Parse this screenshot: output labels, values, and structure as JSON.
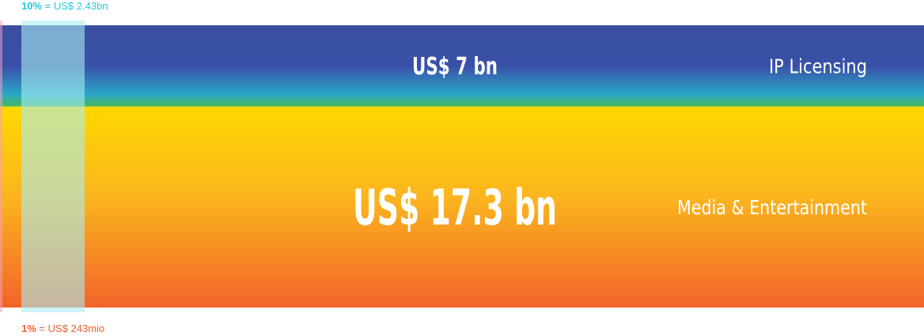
{
  "chart_data": {
    "type": "bar",
    "orientation": "stacked-horizontal-band",
    "total_bn": 24.3,
    "categories": [
      "IP Licensing",
      "Media & Entertainment"
    ],
    "series": [
      {
        "values": [
          7,
          17.3
        ]
      }
    ],
    "value_labels": [
      "US$ 7 bn",
      "US$ 17.3 bn"
    ],
    "legend": [
      {
        "percent": "10%",
        "text": "= US$ 2.43bn",
        "fraction": 0.1,
        "color": "#2bc6d9",
        "position": "top-left"
      },
      {
        "percent": "1%",
        "text": "= US$ 243mio",
        "fraction": 0.01,
        "color": "#f0612e",
        "position": "bottom-left"
      }
    ]
  },
  "colors": {
    "ip_top": "#3a4fa0",
    "ip_mid": "#23b4d8",
    "ip_bottom": "#4cb85a",
    "media_top": "#ffd800",
    "media_bottom": "#f2642a",
    "scale_10_fill": "#a8ecf2",
    "scale_1_fill": "#f4a0c0"
  }
}
